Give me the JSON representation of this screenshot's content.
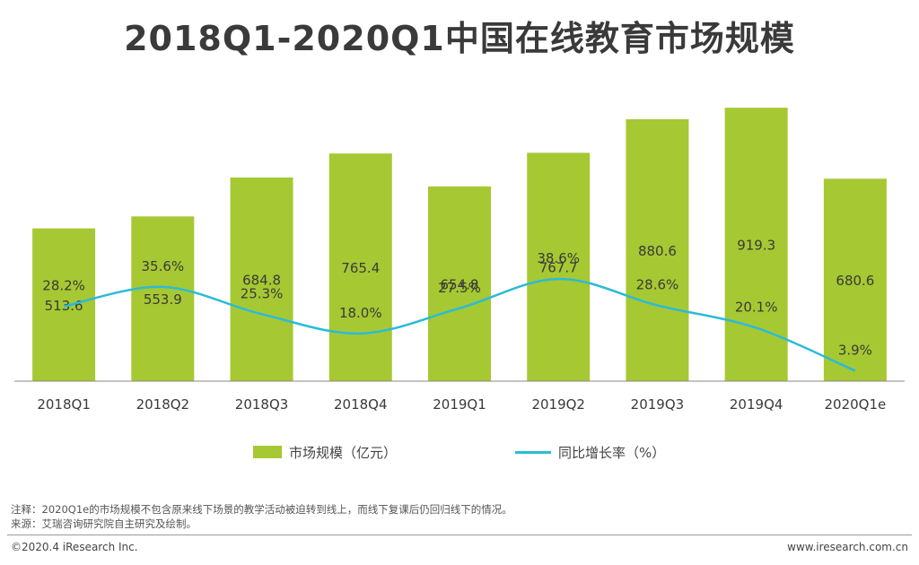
{
  "title": "2018Q1-2020Q1中国在线教育市场规模",
  "colors": {
    "bar": "#a6c832",
    "line": "#2bbbd8",
    "axis": "#888888"
  },
  "chart_data": {
    "type": "bar+line",
    "categories": [
      "2018Q1",
      "2018Q2",
      "2018Q3",
      "2018Q4",
      "2019Q1",
      "2019Q2",
      "2019Q3",
      "2019Q4",
      "2020Q1e"
    ],
    "series": [
      {
        "name": "市场规模（亿元）",
        "type": "bar",
        "values": [
          513.6,
          553.9,
          684.8,
          765.4,
          654.8,
          767.7,
          880.6,
          919.3,
          680.6
        ]
      },
      {
        "name": "同比增长率（%）",
        "type": "line",
        "values": [
          28.2,
          35.6,
          25.3,
          18.0,
          27.5,
          38.6,
          28.6,
          20.1,
          3.9
        ]
      }
    ],
    "bar_labels": [
      "513.6",
      "553.9",
      "684.8",
      "765.4",
      "654.8",
      "767.7",
      "880.6",
      "919.3",
      "680.6"
    ],
    "line_labels": [
      "28.2%",
      "35.6%",
      "25.3%",
      "18.0%",
      "27.5%",
      "38.6%",
      "28.6%",
      "20.1%",
      "3.9%"
    ],
    "bar_ylim": [
      0,
      980
    ],
    "line_ylim": [
      0,
      110
    ],
    "legend_position": "bottom",
    "grid": false
  },
  "legend": {
    "bar_label": "市场规模（亿元）",
    "line_label": "同比增长率（%）"
  },
  "notes": {
    "note1": "注释：2020Q1e的市场规模不包含原来线下场景的教学活动被迫转到线上，而线下复课后仍回归线下的情况。",
    "note2": "来源：艾瑞咨询研究院自主研究及绘制。"
  },
  "footer": {
    "left": "©2020.4 iResearch Inc.",
    "right": "www.iresearch.com.cn"
  }
}
